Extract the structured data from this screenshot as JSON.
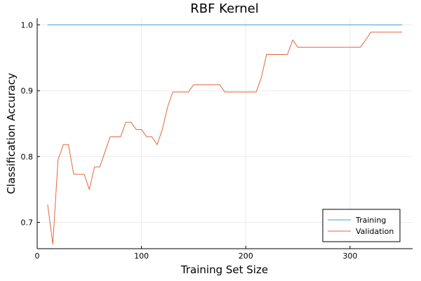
{
  "chart_data": {
    "type": "line",
    "title": "RBF Kernel",
    "xlabel": "Training Set Size",
    "ylabel": "Classification Accuracy",
    "xlim": [
      0,
      360
    ],
    "ylim": [
      0.66,
      1.01
    ],
    "xticks": [
      0,
      100,
      200,
      300
    ],
    "yticks": [
      0.7,
      0.8,
      0.9,
      1.0
    ],
    "grid": true,
    "legend": "bottom-right",
    "series": [
      {
        "name": "Training",
        "color": "#3ea2e0",
        "x": [
          10,
          350
        ],
        "y": [
          1.0,
          1.0
        ]
      },
      {
        "name": "Validation",
        "color": "#e2673c",
        "x": [
          10,
          15,
          20,
          25,
          30,
          35,
          40,
          45,
          50,
          55,
          60,
          65,
          70,
          75,
          80,
          85,
          90,
          95,
          100,
          105,
          110,
          115,
          120,
          125,
          130,
          135,
          140,
          145,
          150,
          155,
          160,
          165,
          170,
          175,
          180,
          185,
          190,
          195,
          200,
          205,
          210,
          215,
          220,
          225,
          230,
          235,
          240,
          245,
          250,
          255,
          260,
          265,
          270,
          275,
          280,
          285,
          290,
          295,
          300,
          305,
          310,
          315,
          320,
          325,
          330,
          335,
          340,
          345,
          350
        ],
        "y": [
          0.727,
          0.667,
          0.795,
          0.818,
          0.818,
          0.773,
          0.773,
          0.773,
          0.75,
          0.784,
          0.784,
          0.807,
          0.83,
          0.83,
          0.83,
          0.852,
          0.852,
          0.841,
          0.841,
          0.83,
          0.83,
          0.818,
          0.841,
          0.875,
          0.898,
          0.898,
          0.898,
          0.898,
          0.909,
          0.909,
          0.909,
          0.909,
          0.909,
          0.909,
          0.898,
          0.898,
          0.898,
          0.898,
          0.898,
          0.898,
          0.898,
          0.92,
          0.955,
          0.955,
          0.955,
          0.955,
          0.955,
          0.977,
          0.966,
          0.966,
          0.966,
          0.966,
          0.966,
          0.966,
          0.966,
          0.966,
          0.966,
          0.966,
          0.966,
          0.966,
          0.966,
          0.977,
          0.989,
          0.989,
          0.989,
          0.989,
          0.989,
          0.989,
          0.989
        ]
      }
    ]
  }
}
